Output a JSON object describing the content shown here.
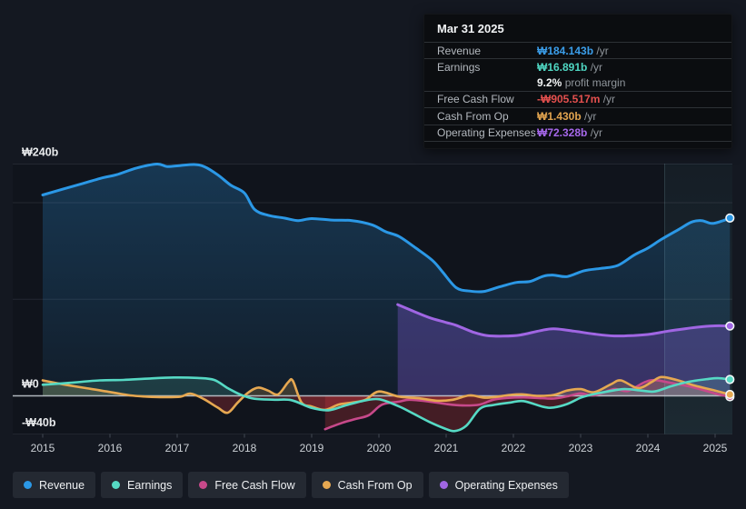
{
  "tooltip": {
    "title": "Mar 31 2025",
    "rows": [
      {
        "label": "Revenue",
        "value": "₩184.143b",
        "suffix": " /yr",
        "color": "#3B9EEA"
      },
      {
        "label": "Earnings",
        "value": "₩16.891b",
        "suffix": " /yr",
        "color": "#4FD6C2"
      },
      {
        "label": "",
        "value": "9.2%",
        "suffix": " profit margin",
        "color": "#F2F4F5"
      },
      {
        "label": "Free Cash Flow",
        "value": "-₩905.517m",
        "suffix": " /yr",
        "color": "#E4504E"
      },
      {
        "label": "Cash From Op",
        "value": "₩1.430b",
        "suffix": " /yr",
        "color": "#E2A44F"
      },
      {
        "label": "Operating Expenses",
        "value": "₩72.328b",
        "suffix": " /yr",
        "color": "#A668EA"
      }
    ]
  },
  "legend": [
    {
      "label": "Revenue",
      "color": "#2B98E6"
    },
    {
      "label": "Earnings",
      "color": "#56D9C4"
    },
    {
      "label": "Free Cash Flow",
      "color": "#C7498A"
    },
    {
      "label": "Cash From Op",
      "color": "#E6A851"
    },
    {
      "label": "Operating Expenses",
      "color": "#A066E3"
    }
  ],
  "chart_data": {
    "type": "line",
    "title": "Earnings and revenue history",
    "unit": "₩ billions",
    "x_axis": {
      "labels": [
        "2015",
        "2016",
        "2017",
        "2018",
        "2019",
        "2020",
        "2021",
        "2022",
        "2023",
        "2024",
        "2025"
      ],
      "range": [
        2015,
        2025.25
      ]
    },
    "y_axis": {
      "labels": [
        {
          "text": "₩240b",
          "value": 240
        },
        {
          "text": "₩0",
          "value": 0
        },
        {
          "text": "-₩40b",
          "value": -40
        }
      ],
      "gridline_values": [
        240,
        200,
        100
      ],
      "zero_value": 0,
      "bottom_value": -40,
      "ylim": [
        -40,
        240
      ]
    },
    "highlight": {
      "x_start": 2024.25,
      "x_end": 2025.27
    },
    "series": [
      {
        "name": "Revenue",
        "color": "#2B98E6",
        "width": 3,
        "fill_mode": "gradient",
        "fill_top": "rgba(43,152,230,0.27)",
        "fill_bottom": "rgba(43,152,230,0.07)",
        "points": [
          [
            2015.0,
            208
          ],
          [
            2015.3,
            214
          ],
          [
            2015.6,
            220
          ],
          [
            2015.9,
            226
          ],
          [
            2016.1,
            229
          ],
          [
            2016.4,
            236
          ],
          [
            2016.7,
            240
          ],
          [
            2016.85,
            237.5
          ],
          [
            2017.05,
            238.5
          ],
          [
            2017.25,
            239.5
          ],
          [
            2017.4,
            237.5
          ],
          [
            2017.6,
            229
          ],
          [
            2017.8,
            218
          ],
          [
            2018.0,
            210
          ],
          [
            2018.15,
            193
          ],
          [
            2018.35,
            187
          ],
          [
            2018.6,
            184
          ],
          [
            2018.8,
            181.5
          ],
          [
            2019.0,
            183.5
          ],
          [
            2019.3,
            182
          ],
          [
            2019.6,
            181.5
          ],
          [
            2019.9,
            177
          ],
          [
            2020.1,
            170
          ],
          [
            2020.3,
            165
          ],
          [
            2020.55,
            153
          ],
          [
            2020.8,
            140
          ],
          [
            2020.95,
            128
          ],
          [
            2021.15,
            112
          ],
          [
            2021.35,
            108.5
          ],
          [
            2021.55,
            108
          ],
          [
            2021.8,
            113
          ],
          [
            2022.05,
            117.5
          ],
          [
            2022.25,
            118.5
          ],
          [
            2022.45,
            124
          ],
          [
            2022.6,
            125
          ],
          [
            2022.8,
            123.5
          ],
          [
            2023.05,
            129.5
          ],
          [
            2023.3,
            132
          ],
          [
            2023.55,
            135
          ],
          [
            2023.8,
            146
          ],
          [
            2024.0,
            153
          ],
          [
            2024.2,
            162
          ],
          [
            2024.45,
            172
          ],
          [
            2024.65,
            180
          ],
          [
            2024.8,
            181.5
          ],
          [
            2024.95,
            178.5
          ],
          [
            2025.1,
            181
          ],
          [
            2025.22,
            184.1
          ]
        ]
      },
      {
        "name": "Operating Expenses",
        "color": "#A066E3",
        "width": 3,
        "fill_mode": "solid",
        "fill": "rgba(134,92,220,0.33)",
        "points": [
          [
            2020.28,
            94.5
          ],
          [
            2020.5,
            88
          ],
          [
            2020.75,
            81
          ],
          [
            2021.0,
            76
          ],
          [
            2021.15,
            73
          ],
          [
            2021.4,
            66
          ],
          [
            2021.6,
            62.5
          ],
          [
            2021.85,
            61.8
          ],
          [
            2022.1,
            63
          ],
          [
            2022.4,
            67.5
          ],
          [
            2022.6,
            69.5
          ],
          [
            2022.9,
            67
          ],
          [
            2023.2,
            64
          ],
          [
            2023.5,
            62
          ],
          [
            2023.8,
            62.5
          ],
          [
            2024.05,
            64
          ],
          [
            2024.3,
            67
          ],
          [
            2024.55,
            69.5
          ],
          [
            2024.8,
            71.5
          ],
          [
            2025.0,
            72.5
          ],
          [
            2025.22,
            72.3
          ]
        ]
      },
      {
        "name": "Free Cash Flow",
        "color": "#C7498A",
        "width": 2.6,
        "fill_mode": "split",
        "pos_fill": "rgba(201,81,143,0.22)",
        "neg_fill": "rgba(190,52,60,0.30)",
        "points": [
          [
            2019.2,
            -34.5
          ],
          [
            2019.45,
            -28
          ],
          [
            2019.65,
            -24
          ],
          [
            2019.85,
            -20
          ],
          [
            2020.05,
            -9
          ],
          [
            2020.3,
            -6
          ],
          [
            2020.45,
            -4
          ],
          [
            2020.7,
            -5.5
          ],
          [
            2021.0,
            -8.5
          ],
          [
            2021.25,
            -10
          ],
          [
            2021.5,
            -9
          ],
          [
            2021.7,
            -4
          ],
          [
            2021.9,
            -2.2
          ],
          [
            2022.15,
            -1.6
          ],
          [
            2022.35,
            -2.2
          ],
          [
            2022.6,
            -2.8
          ],
          [
            2022.8,
            -0.5
          ],
          [
            2023.0,
            2.5
          ],
          [
            2023.2,
            0.5
          ],
          [
            2023.5,
            7
          ],
          [
            2023.7,
            5
          ],
          [
            2023.95,
            14
          ],
          [
            2024.1,
            16.3
          ],
          [
            2024.3,
            14
          ],
          [
            2024.6,
            10
          ],
          [
            2024.85,
            5.5
          ],
          [
            2025.05,
            1.5
          ],
          [
            2025.22,
            -0.9
          ]
        ]
      },
      {
        "name": "Cash From Op",
        "color": "#E6A851",
        "width": 2.6,
        "fill_mode": "split",
        "pos_fill": "rgba(232,169,79,0.20)",
        "neg_fill": "rgba(190,52,60,0.30)",
        "points": [
          [
            2015.0,
            16
          ],
          [
            2015.3,
            12
          ],
          [
            2015.6,
            8.5
          ],
          [
            2016.0,
            4
          ],
          [
            2016.3,
            0.5
          ],
          [
            2016.55,
            -0.8
          ],
          [
            2016.8,
            -1.3
          ],
          [
            2017.05,
            -0.8
          ],
          [
            2017.2,
            2.3
          ],
          [
            2017.4,
            -3.5
          ],
          [
            2017.6,
            -12
          ],
          [
            2017.75,
            -17.5
          ],
          [
            2017.9,
            -7
          ],
          [
            2018.05,
            3
          ],
          [
            2018.2,
            8.5
          ],
          [
            2018.35,
            5.5
          ],
          [
            2018.5,
            1.5
          ],
          [
            2018.65,
            14
          ],
          [
            2018.72,
            15.5
          ],
          [
            2018.85,
            -7
          ],
          [
            2019.0,
            -11
          ],
          [
            2019.2,
            -14.5
          ],
          [
            2019.4,
            -9
          ],
          [
            2019.6,
            -7
          ],
          [
            2019.8,
            -4
          ],
          [
            2020.0,
            4.5
          ],
          [
            2020.3,
            -0.8
          ],
          [
            2020.6,
            -2.5
          ],
          [
            2020.85,
            -5
          ],
          [
            2021.1,
            -4
          ],
          [
            2021.35,
            0.5
          ],
          [
            2021.6,
            -2
          ],
          [
            2021.95,
            0.9
          ],
          [
            2022.15,
            1.5
          ],
          [
            2022.35,
            0
          ],
          [
            2022.6,
            0.9
          ],
          [
            2022.8,
            5.5
          ],
          [
            2023.0,
            7
          ],
          [
            2023.2,
            3.8
          ],
          [
            2023.45,
            12
          ],
          [
            2023.6,
            16
          ],
          [
            2023.85,
            8
          ],
          [
            2024.05,
            14
          ],
          [
            2024.2,
            19.5
          ],
          [
            2024.45,
            16
          ],
          [
            2024.7,
            10.5
          ],
          [
            2025.0,
            5.5
          ],
          [
            2025.22,
            1.4
          ]
        ]
      },
      {
        "name": "Earnings",
        "color": "#56D9C4",
        "width": 2.6,
        "fill_mode": "split",
        "pos_fill": "rgba(91,215,194,0.16)",
        "neg_fill": "rgba(190,52,60,0.30)",
        "points": [
          [
            2015.0,
            11.5
          ],
          [
            2015.4,
            13.5
          ],
          [
            2015.85,
            16
          ],
          [
            2016.2,
            16.5
          ],
          [
            2016.6,
            18
          ],
          [
            2016.95,
            19
          ],
          [
            2017.3,
            18.5
          ],
          [
            2017.55,
            16.5
          ],
          [
            2017.75,
            8
          ],
          [
            2017.95,
            1
          ],
          [
            2018.15,
            -3
          ],
          [
            2018.45,
            -4
          ],
          [
            2018.7,
            -4.5
          ],
          [
            2019.0,
            -12.5
          ],
          [
            2019.25,
            -15
          ],
          [
            2019.5,
            -10
          ],
          [
            2019.75,
            -5.5
          ],
          [
            2020.0,
            -3.5
          ],
          [
            2020.3,
            -11
          ],
          [
            2020.5,
            -18
          ],
          [
            2020.75,
            -27
          ],
          [
            2020.95,
            -33
          ],
          [
            2021.12,
            -36.5
          ],
          [
            2021.3,
            -31
          ],
          [
            2021.5,
            -13.5
          ],
          [
            2021.7,
            -9.5
          ],
          [
            2021.95,
            -7
          ],
          [
            2022.15,
            -5.5
          ],
          [
            2022.45,
            -11.5
          ],
          [
            2022.6,
            -12
          ],
          [
            2022.8,
            -8.5
          ],
          [
            2023.0,
            -2
          ],
          [
            2023.15,
            1
          ],
          [
            2023.4,
            4.5
          ],
          [
            2023.65,
            7
          ],
          [
            2023.9,
            5.5
          ],
          [
            2024.1,
            4.5
          ],
          [
            2024.35,
            10
          ],
          [
            2024.6,
            14.5
          ],
          [
            2024.9,
            17.5
          ],
          [
            2025.05,
            18.3
          ],
          [
            2025.22,
            16.9
          ]
        ]
      }
    ]
  }
}
